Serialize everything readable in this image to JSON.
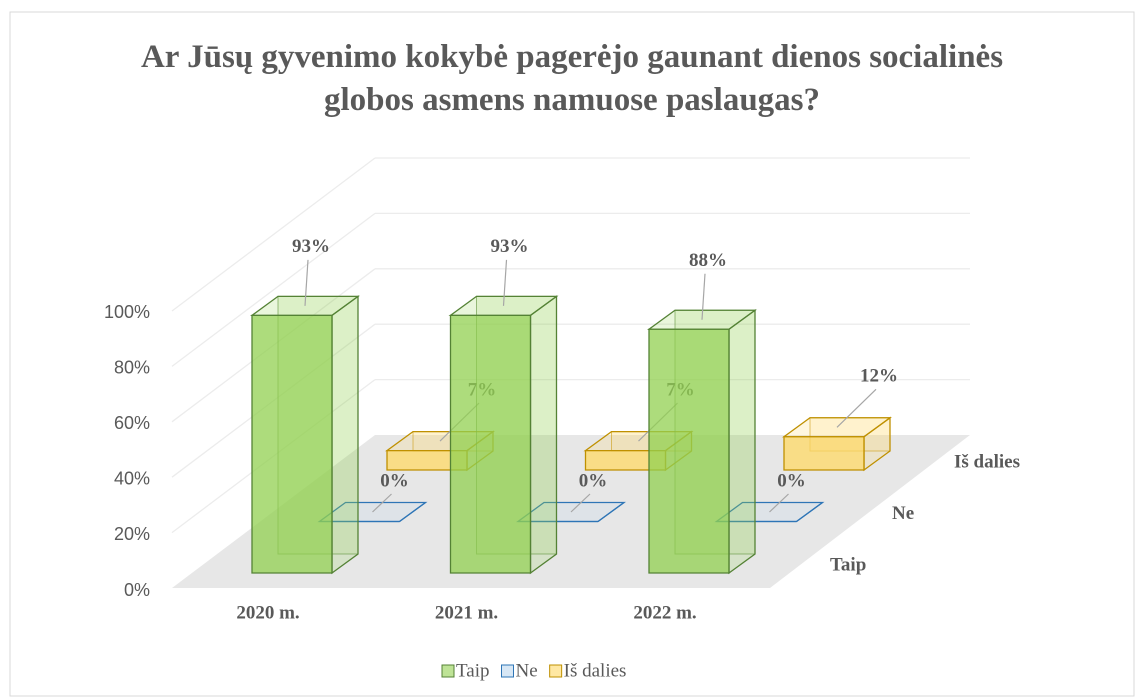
{
  "chart_data": {
    "type": "bar3d",
    "title": "Ar Jūsų gyvenimo kokybė pagerėjo gaunant dienos socialinės globos asmens namuose paslaugas?",
    "categories": [
      "2020 m.",
      "2021 m.",
      "2022 m."
    ],
    "series": [
      {
        "name": "Taip",
        "color": "#92d050",
        "stroke": "#548235",
        "values": [
          93,
          93,
          88
        ],
        "value_labels": [
          "93%",
          "93%",
          "88%"
        ]
      },
      {
        "name": "Ne",
        "color": "#bdd7ee",
        "stroke": "#2e75b6",
        "values": [
          0,
          0,
          0
        ],
        "value_labels": [
          "0%",
          "0%",
          "0%"
        ]
      },
      {
        "name": "Iš dalies",
        "color": "#ffd966",
        "stroke": "#bf9000",
        "values": [
          7,
          7,
          12
        ],
        "value_labels": [
          "7%",
          "7%",
          "12%"
        ]
      }
    ],
    "ylim": [
      0,
      100
    ],
    "yticks": [
      {
        "value": 0,
        "label": "0%"
      },
      {
        "value": 20,
        "label": "20%"
      },
      {
        "value": 40,
        "label": "40%"
      },
      {
        "value": 60,
        "label": "60%"
      },
      {
        "value": 80,
        "label": "80%"
      },
      {
        "value": 100,
        "label": "100%"
      }
    ],
    "grid": true,
    "legend": "bottom"
  }
}
